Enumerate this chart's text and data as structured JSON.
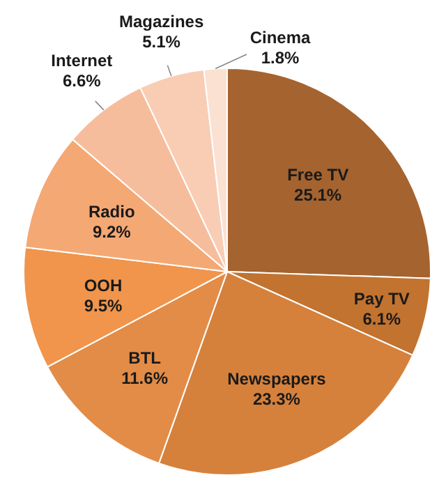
{
  "chart_data": {
    "type": "pie",
    "categories": [
      "Free TV",
      "Pay TV",
      "Newspapers",
      "BTL",
      "OOH",
      "Radio",
      "Internet",
      "Magazines",
      "Cinema"
    ],
    "values": [
      25.1,
      6.1,
      23.3,
      11.6,
      9.5,
      9.2,
      6.6,
      5.1,
      1.8
    ],
    "colors": [
      "#a5632f",
      "#c2732f",
      "#d5813c",
      "#e28c47",
      "#f0954b",
      "#f4a874",
      "#f6bd9c",
      "#f8cdb4",
      "#fbe1d1"
    ],
    "value_labels": [
      "25.1%",
      "6.1%",
      "23.3%",
      "11.6%",
      "9.5%",
      "9.2%",
      "6.6%",
      "5.1%",
      "1.8%"
    ]
  }
}
